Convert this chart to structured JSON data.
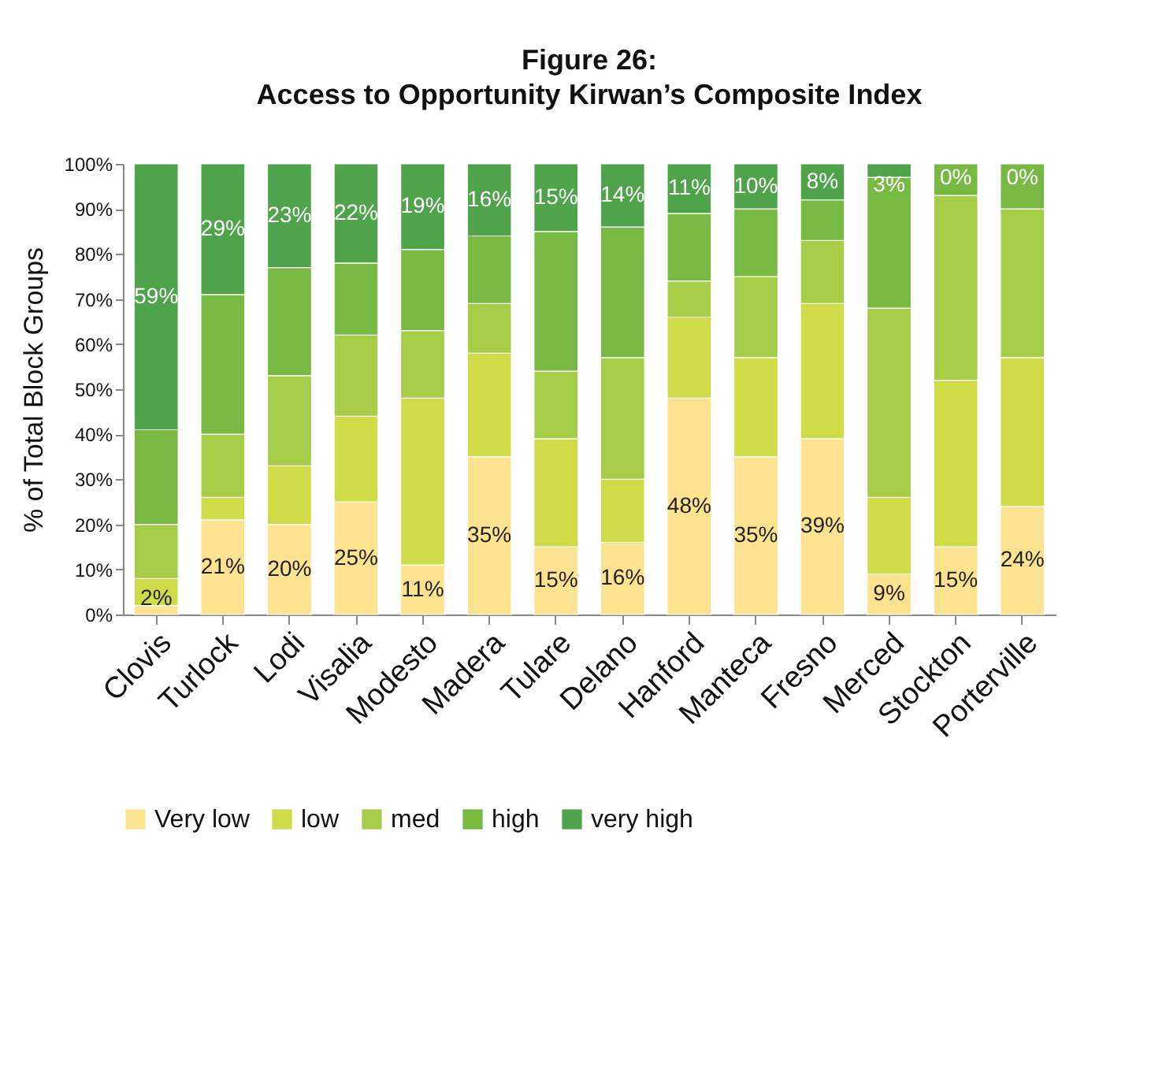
{
  "chart_data": {
    "type": "bar",
    "stacked": true,
    "title": "Figure 26:",
    "subtitle": "Access to Opportunity Kirwan’s Composite Index",
    "ylabel": "% of Total Block Groups",
    "categories": [
      "Clovis",
      "Turlock",
      "Lodi",
      "Visalia",
      "Modesto",
      "Madera",
      "Tulare",
      "Delano",
      "Hanford",
      "Manteca",
      "Fresno",
      "Merced",
      "Stockton",
      "Porterville"
    ],
    "ylim": [
      0,
      100
    ],
    "yticks": [
      {
        "value": 0,
        "label": "0%"
      },
      {
        "value": 10,
        "label": "10%"
      },
      {
        "value": 20,
        "label": "20%"
      },
      {
        "value": 30,
        "label": "30%"
      },
      {
        "value": 40,
        "label": "40%"
      },
      {
        "value": 50,
        "label": "50%"
      },
      {
        "value": 60,
        "label": "60%"
      },
      {
        "value": 70,
        "label": "70%"
      },
      {
        "value": 80,
        "label": "80%"
      },
      {
        "value": 90,
        "label": "90%"
      },
      {
        "value": 100,
        "label": "100%"
      }
    ],
    "grid": false,
    "legend": "bottom",
    "series": [
      {
        "name": "Very low",
        "color": "#fde28f",
        "values": [
          2,
          21,
          20,
          25,
          11,
          35,
          15,
          16,
          48,
          35,
          39,
          9,
          15,
          24
        ],
        "value_labels": [
          "2%",
          "21%",
          "20%",
          "25%",
          "11%",
          "35%",
          "15%",
          "16%",
          "48%",
          "35%",
          "39%",
          "9%",
          "15%",
          "24%"
        ]
      },
      {
        "name": "low",
        "color": "#cfdb47",
        "values": [
          6,
          5,
          13,
          19,
          37,
          23,
          24,
          14,
          18,
          22,
          30,
          17,
          37,
          33
        ]
      },
      {
        "name": "med",
        "color": "#a6cd47",
        "values": [
          12,
          14,
          20,
          18,
          15,
          11,
          15,
          27,
          8,
          18,
          14,
          42,
          41,
          33
        ]
      },
      {
        "name": "high",
        "color": "#78b944",
        "values": [
          21,
          31,
          24,
          16,
          18,
          15,
          31,
          29,
          15,
          15,
          9,
          29,
          7,
          10
        ]
      },
      {
        "name": "very high",
        "color": "#4fa34a",
        "values": [
          59,
          29,
          23,
          22,
          19,
          16,
          15,
          14,
          11,
          10,
          8,
          3,
          0,
          0
        ],
        "value_labels": [
          "59%",
          "29%",
          "23%",
          "22%",
          "19%",
          "16%",
          "15%",
          "14%",
          "11%",
          "10%",
          "8%",
          "3%",
          "0%",
          "0%"
        ]
      }
    ]
  }
}
